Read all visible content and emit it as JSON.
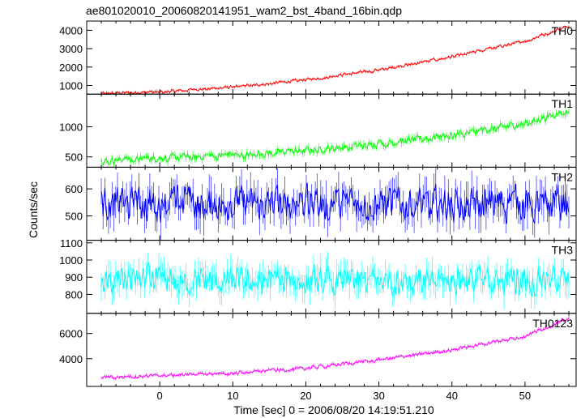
{
  "chart_data": {
    "type": "line",
    "title": "ae801020010_20060820141951_wam2_bst_4band_16bin.qdp",
    "xlabel": "Time [sec] 0 = 2006/08/20 14:19:51.210",
    "ylabel": "Counts/sec",
    "xlim": [
      -10,
      57
    ],
    "x_ticks": [
      0,
      10,
      20,
      30,
      40,
      50
    ],
    "grid": false,
    "data_x_range": [
      -8,
      56
    ],
    "panels": [
      {
        "name": "TH0",
        "color": "#ff0000",
        "ylim": [
          530,
          4500
        ],
        "y_ticks": [
          1000,
          2000,
          3000,
          4000
        ],
        "trend": [
          [
            -8,
            550
          ],
          [
            0,
            650
          ],
          [
            10,
            900
          ],
          [
            20,
            1300
          ],
          [
            30,
            1850
          ],
          [
            40,
            2550
          ],
          [
            50,
            3400
          ],
          [
            56,
            4250
          ]
        ],
        "noise": 70
      },
      {
        "name": "TH1",
        "color": "#00ff00",
        "ylim": [
          330,
          1540
        ],
        "y_ticks": [
          500,
          1000
        ],
        "trend": [
          [
            -8,
            430
          ],
          [
            0,
            480
          ],
          [
            10,
            530
          ],
          [
            20,
            600
          ],
          [
            30,
            720
          ],
          [
            40,
            850
          ],
          [
            50,
            1050
          ],
          [
            56,
            1270
          ]
        ],
        "noise": 55
      },
      {
        "name": "TH2",
        "color": "#0000ff",
        "ylim": [
          410,
          680
        ],
        "y_ticks": [
          500,
          600
        ],
        "trend": [
          [
            -8,
            545
          ],
          [
            56,
            545
          ]
        ],
        "noise": 55
      },
      {
        "name": "TH3",
        "color": "#00ffff",
        "ylim": [
          690,
          1115
        ],
        "y_ticks": [
          800,
          900,
          1000,
          1100
        ],
        "trend": [
          [
            -8,
            880
          ],
          [
            56,
            880
          ]
        ],
        "noise": 70
      },
      {
        "name": "TH0123",
        "color": "#ff00ff",
        "ylim": [
          1800,
          7600
        ],
        "y_ticks": [
          4000,
          6000
        ],
        "trend": [
          [
            -8,
            2500
          ],
          [
            0,
            2650
          ],
          [
            10,
            2850
          ],
          [
            20,
            3250
          ],
          [
            30,
            3900
          ],
          [
            40,
            4700
          ],
          [
            50,
            5800
          ],
          [
            56,
            7200
          ]
        ],
        "noise": 120
      }
    ]
  }
}
